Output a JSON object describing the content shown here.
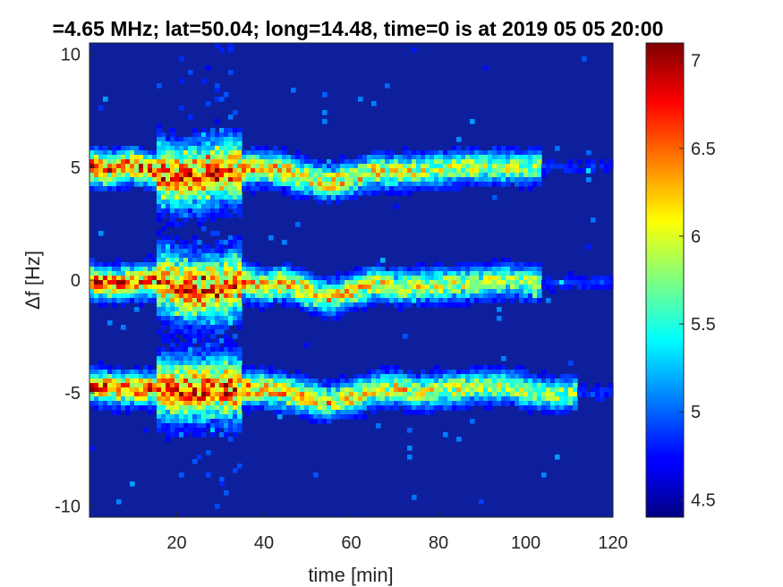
{
  "chart_data": {
    "type": "heatmap",
    "title": "=4.65 MHz;  lat=50.04; long=14.48, time=0 is at 2019 05 05 20:00",
    "xlabel": "time [min]",
    "ylabel": "Δf [Hz]",
    "xlim": [
      0,
      120
    ],
    "ylim": [
      -10.5,
      10.5
    ],
    "xticks": [
      20,
      40,
      60,
      80,
      100,
      120
    ],
    "yticks": [
      10,
      5,
      0,
      -5,
      -10
    ],
    "colorbar": {
      "colormap": "jet",
      "clim": [
        4.4,
        7.1
      ],
      "ticks": [
        7,
        6.5,
        6,
        5.5,
        5,
        4.5
      ]
    },
    "bands": [
      {
        "center": 5,
        "trace": [
          [
            0,
            5.0
          ],
          [
            5,
            4.9
          ],
          [
            10,
            5.1
          ],
          [
            15,
            4.8
          ],
          [
            20,
            4.6
          ],
          [
            25,
            4.7
          ],
          [
            30,
            4.9
          ],
          [
            35,
            4.9
          ],
          [
            40,
            5.0
          ],
          [
            45,
            4.8
          ],
          [
            50,
            4.5
          ],
          [
            55,
            4.3
          ],
          [
            60,
            4.5
          ],
          [
            65,
            4.8
          ],
          [
            70,
            4.8
          ],
          [
            75,
            4.8
          ],
          [
            80,
            4.9
          ],
          [
            85,
            5.0
          ],
          [
            90,
            5.0
          ],
          [
            95,
            5.0
          ],
          [
            100,
            5.0
          ],
          [
            110,
            5.0
          ],
          [
            120,
            5.0
          ]
        ],
        "active_until": 104
      },
      {
        "center": 0,
        "trace": [
          [
            0,
            0.0
          ],
          [
            5,
            -0.2
          ],
          [
            10,
            -0.1
          ],
          [
            15,
            0.0
          ],
          [
            20,
            -0.2
          ],
          [
            25,
            -0.4
          ],
          [
            30,
            -0.3
          ],
          [
            35,
            0.0
          ],
          [
            40,
            -0.3
          ],
          [
            45,
            -0.1
          ],
          [
            50,
            -0.5
          ],
          [
            55,
            -0.8
          ],
          [
            60,
            -0.5
          ],
          [
            65,
            -0.2
          ],
          [
            70,
            -0.3
          ],
          [
            75,
            -0.3
          ],
          [
            80,
            -0.2
          ],
          [
            85,
            -0.2
          ],
          [
            90,
            -0.1
          ],
          [
            95,
            0.0
          ],
          [
            100,
            -0.1
          ],
          [
            110,
            -0.1
          ],
          [
            120,
            -0.1
          ]
        ],
        "active_until": 104
      },
      {
        "center": -5,
        "trace": [
          [
            0,
            -4.7
          ],
          [
            5,
            -4.8
          ],
          [
            10,
            -4.8
          ],
          [
            15,
            -4.8
          ],
          [
            20,
            -4.8
          ],
          [
            25,
            -4.8
          ],
          [
            30,
            -4.7
          ],
          [
            35,
            -4.8
          ],
          [
            40,
            -4.8
          ],
          [
            45,
            -5.0
          ],
          [
            50,
            -5.2
          ],
          [
            55,
            -5.4
          ],
          [
            60,
            -5.2
          ],
          [
            65,
            -4.9
          ],
          [
            70,
            -4.8
          ],
          [
            75,
            -5.0
          ],
          [
            80,
            -4.9
          ],
          [
            85,
            -4.8
          ],
          [
            90,
            -4.7
          ],
          [
            95,
            -4.7
          ],
          [
            100,
            -4.9
          ],
          [
            105,
            -5.1
          ],
          [
            110,
            -5.0
          ],
          [
            120,
            -5.0
          ]
        ],
        "active_until": 112
      }
    ]
  }
}
